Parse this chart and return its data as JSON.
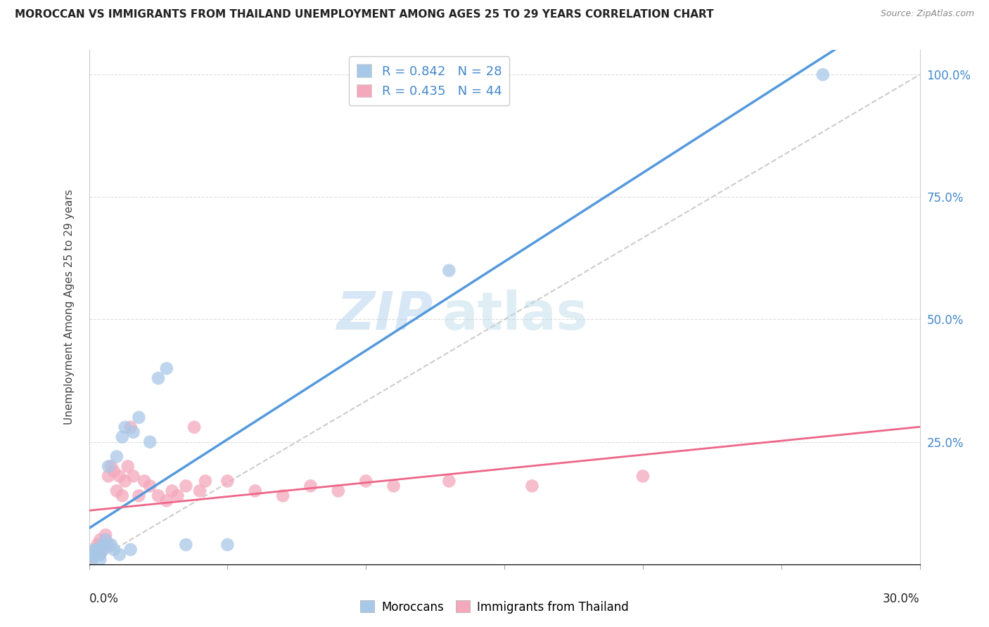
{
  "title": "MOROCCAN VS IMMIGRANTS FROM THAILAND UNEMPLOYMENT AMONG AGES 25 TO 29 YEARS CORRELATION CHART",
  "source": "Source: ZipAtlas.com",
  "ylabel": "Unemployment Among Ages 25 to 29 years",
  "ytick_labels": [
    "100.0%",
    "75.0%",
    "50.0%",
    "25.0%",
    ""
  ],
  "ytick_values": [
    1.0,
    0.75,
    0.5,
    0.25,
    0.0
  ],
  "xmin": 0.0,
  "xmax": 0.3,
  "ymin": 0.0,
  "ymax": 1.05,
  "watermark_zip": "ZIP",
  "watermark_atlas": "atlas",
  "moroccans_color": "#a8c8e8",
  "thailand_color": "#f4a8bc",
  "blue_line_color": "#5599dd",
  "pink_line_color": "#ee6688",
  "ref_line_color": "#cccccc",
  "moroccans_x": [
    0.001,
    0.001,
    0.002,
    0.002,
    0.003,
    0.003,
    0.004,
    0.004,
    0.005,
    0.005,
    0.006,
    0.007,
    0.008,
    0.009,
    0.01,
    0.011,
    0.012,
    0.013,
    0.015,
    0.016,
    0.018,
    0.022,
    0.025,
    0.028,
    0.035,
    0.05,
    0.13,
    0.265
  ],
  "moroccans_y": [
    0.01,
    0.02,
    0.02,
    0.03,
    0.02,
    0.03,
    0.02,
    0.01,
    0.03,
    0.04,
    0.05,
    0.2,
    0.04,
    0.03,
    0.22,
    0.02,
    0.26,
    0.28,
    0.03,
    0.27,
    0.3,
    0.25,
    0.38,
    0.4,
    0.04,
    0.04,
    0.6,
    1.0
  ],
  "thailand_x": [
    0.001,
    0.001,
    0.002,
    0.002,
    0.003,
    0.003,
    0.004,
    0.004,
    0.005,
    0.005,
    0.006,
    0.006,
    0.007,
    0.007,
    0.008,
    0.009,
    0.01,
    0.011,
    0.012,
    0.013,
    0.014,
    0.015,
    0.016,
    0.018,
    0.02,
    0.022,
    0.025,
    0.028,
    0.03,
    0.032,
    0.035,
    0.038,
    0.04,
    0.042,
    0.05,
    0.06,
    0.07,
    0.08,
    0.09,
    0.1,
    0.11,
    0.13,
    0.16,
    0.2
  ],
  "thailand_y": [
    0.02,
    0.01,
    0.03,
    0.02,
    0.04,
    0.03,
    0.02,
    0.05,
    0.04,
    0.03,
    0.06,
    0.05,
    0.04,
    0.18,
    0.2,
    0.19,
    0.15,
    0.18,
    0.14,
    0.17,
    0.2,
    0.28,
    0.18,
    0.14,
    0.17,
    0.16,
    0.14,
    0.13,
    0.15,
    0.14,
    0.16,
    0.28,
    0.15,
    0.17,
    0.17,
    0.15,
    0.14,
    0.16,
    0.15,
    0.17,
    0.16,
    0.17,
    0.16,
    0.18
  ],
  "legend_r1": "R = 0.842",
  "legend_n1": "N = 28",
  "legend_r2": "R = 0.435",
  "legend_n2": "N = 44",
  "legend_label1": "Moroccans",
  "legend_label2": "Immigrants from Thailand"
}
